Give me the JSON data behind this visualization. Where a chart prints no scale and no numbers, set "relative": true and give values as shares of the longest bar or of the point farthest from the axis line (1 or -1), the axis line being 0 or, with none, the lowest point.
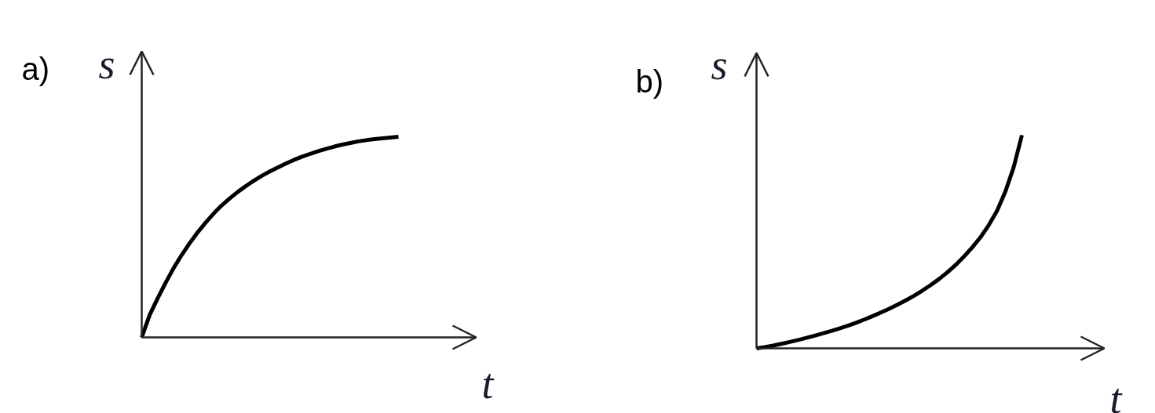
{
  "chart_data": [
    {
      "type": "line",
      "title": "a)",
      "xlabel": "t",
      "ylabel": "s",
      "relative": true,
      "categories": [
        null,
        null,
        null,
        null,
        null,
        null,
        null,
        null,
        null,
        null,
        null,
        null,
        null,
        null,
        null,
        null,
        null,
        null,
        null,
        null,
        null,
        null,
        null,
        null,
        null,
        null,
        null,
        null,
        null,
        null,
        null,
        null,
        null
      ],
      "series": [
        {
          "color": "#000000",
          "values": [
            0,
            0.113,
            0.196,
            0.274,
            0.347,
            0.412,
            0.471,
            0.525,
            0.574,
            0.619,
            0.659,
            0.694,
            0.726,
            0.755,
            0.782,
            0.806,
            0.828,
            0.848,
            0.867,
            0.885,
            0.901,
            0.915,
            0.928,
            0.94,
            0.951,
            0.961,
            0.969,
            0.977,
            0.983,
            0.988,
            0.992,
            0.996,
            1
          ]
        }
      ]
    },
    {
      "type": "line",
      "title": "b)",
      "xlabel": "t",
      "ylabel": "s",
      "relative": true,
      "categories": [
        null,
        null,
        null,
        null,
        null,
        null,
        null,
        null,
        null,
        null,
        null,
        null,
        null,
        null,
        null,
        null,
        null,
        null,
        null,
        null,
        null,
        null,
        null,
        null,
        null,
        null,
        null,
        null,
        null,
        null,
        null,
        null,
        null
      ],
      "series": [
        {
          "color": "#000000",
          "values": [
            0,
            0.006,
            0.013,
            0.021,
            0.03,
            0.039,
            0.049,
            0.059,
            0.07,
            0.081,
            0.093,
            0.106,
            0.12,
            0.135,
            0.151,
            0.168,
            0.186,
            0.205,
            0.225,
            0.247,
            0.271,
            0.297,
            0.325,
            0.356,
            0.391,
            0.43,
            0.473,
            0.521,
            0.578,
            0.645,
            0.735,
            0.849,
            1
          ]
        }
      ]
    }
  ]
}
